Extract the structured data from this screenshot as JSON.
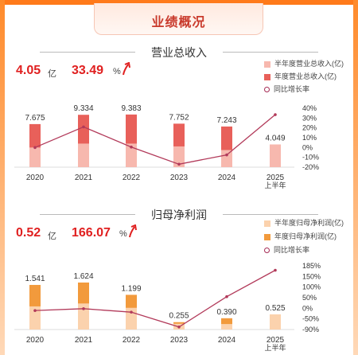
{
  "header": {
    "title": "业绩概况"
  },
  "revenue": {
    "title": "营业总收入",
    "kpi_value": "4.05",
    "kpi_unit": "亿",
    "kpi_growth": "33.49",
    "kpi_growth_unit": "%",
    "legend": [
      "半年度营业总收入(亿)",
      "年度营业总收入(亿)",
      "同比增长率"
    ],
    "colors": {
      "half": "#f7b8ae",
      "annual": "#e8605a",
      "line": "#b23a5a"
    }
  },
  "profit": {
    "title": "归母净利润",
    "kpi_value": "0.52",
    "kpi_unit": "亿",
    "kpi_growth": "166.07",
    "kpi_growth_unit": "%",
    "legend": [
      "半年度归母净利润(亿)",
      "年度归母净利润(亿)",
      "同比增长率"
    ],
    "colors": {
      "half": "#fbd2ad",
      "annual": "#f29a3c",
      "line": "#b23a5a"
    }
  },
  "chart_data": [
    {
      "type": "bar",
      "title": "营业总收入",
      "categories": [
        "2020",
        "2021",
        "2022",
        "2023",
        "2024",
        "2025"
      ],
      "category_sublabels": [
        "",
        "",
        "",
        "",
        "",
        "上半年"
      ],
      "series": [
        {
          "name": "年度营业总收入(亿)",
          "values": [
            7.675,
            9.334,
            9.383,
            7.752,
            7.243,
            null
          ]
        },
        {
          "name": "半年度营业总收入(亿)",
          "values": [
            3.5,
            4.2,
            4.2,
            3.7,
            3.05,
            4.049
          ]
        },
        {
          "name": "同比增长率",
          "axis": "right",
          "values": [
            0,
            21,
            0.5,
            -17,
            -7.5,
            33.49
          ]
        }
      ],
      "data_labels": [
        "7.675",
        "9.334",
        "9.383",
        "7.752",
        "7.243",
        "4.049"
      ],
      "y_right_ticks": [
        "40%",
        "30%",
        "20%",
        "10%",
        "0%",
        "-10%",
        "-20%"
      ],
      "y_right_range": [
        -20,
        40
      ],
      "legend_position": "top-right"
    },
    {
      "type": "bar",
      "title": "归母净利润",
      "categories": [
        "2020",
        "2021",
        "2022",
        "2023",
        "2024",
        "2025"
      ],
      "category_sublabels": [
        "",
        "",
        "",
        "",
        "",
        "上半年"
      ],
      "series": [
        {
          "name": "年度归母净利润(亿)",
          "values": [
            1.541,
            1.624,
            1.199,
            0.255,
            0.39,
            null
          ]
        },
        {
          "name": "半年度归母净利润(亿)",
          "values": [
            0.8,
            0.9,
            0.75,
            0.2,
            0.19,
            0.525
          ]
        },
        {
          "name": "同比增长率",
          "axis": "right",
          "values": [
            -8,
            0,
            -15,
            -79,
            52,
            166.07
          ]
        }
      ],
      "data_labels": [
        "1.541",
        "1.624",
        "1.199",
        "0.255",
        "0.390",
        "0.525"
      ],
      "y_right_ticks": [
        "185%",
        "150%",
        "100%",
        "50%",
        "0%",
        "-50%",
        "-90%"
      ],
      "y_right_range": [
        -90,
        185
      ],
      "legend_position": "top-right"
    }
  ]
}
